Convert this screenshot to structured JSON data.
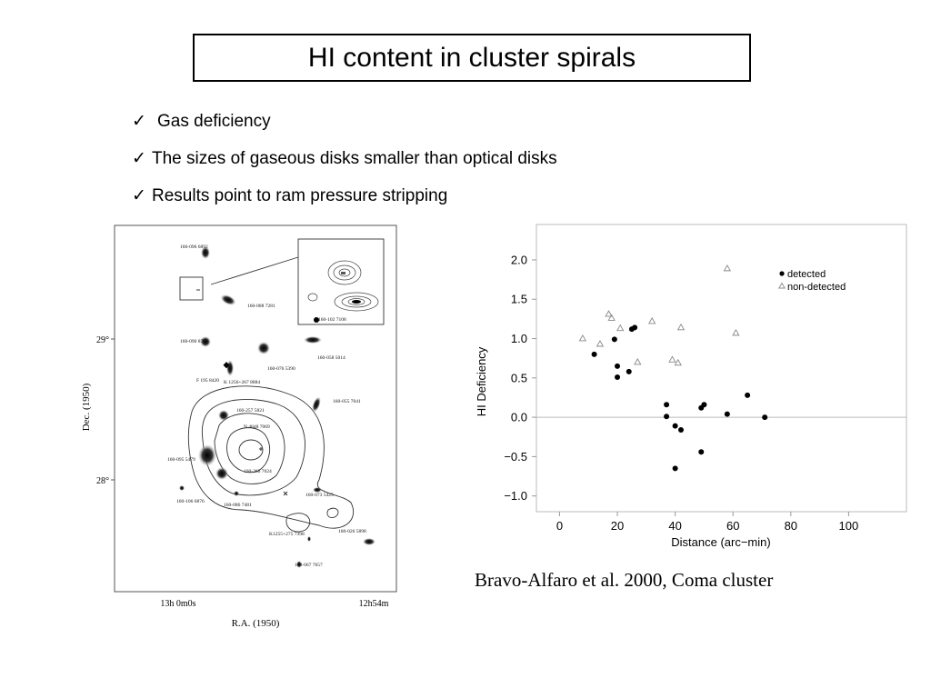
{
  "slide": {
    "title": "HI content in cluster spirals",
    "bullets": [
      "Gas deficiency",
      "The sizes of gaseous disks smaller than optical disks",
      "Results point to ram pressure stripping"
    ],
    "citation": "Bravo-Alfaro et al. 2000, Coma cluster",
    "check_symbol": "✓"
  },
  "map": {
    "dec_label": "Dec. (1950)",
    "ra_label": "R.A. (1950)",
    "dec_ticks": [
      "29°",
      "28°"
    ],
    "ra_tick_left": "13h 0m0s",
    "ra_tick_right": "12h54m",
    "galaxy_labels": [
      "160-096 6892",
      "160-088 7281",
      "160-090 8764",
      "160-058 5014",
      "160-076 5390",
      "F 195 8420",
      "K 1256+267 8884",
      "160-055 7041",
      "160-257 5821",
      "N 4848 7069",
      "160-095 5479",
      "160-260 7024",
      "160-106 6876",
      "160-086 7481",
      "160-073 5425",
      "K1255+275 7398",
      "160-026 5898",
      "160-067 7657",
      "160-102 7108"
    ]
  },
  "chart_data": {
    "type": "scatter",
    "xlabel": "Distance (arc−min)",
    "ylabel": "HI Deficiency",
    "xlim": [
      -8,
      120
    ],
    "ylim": [
      -1.2,
      2.45
    ],
    "xticks": [
      0,
      20,
      40,
      60,
      80,
      100
    ],
    "yticks": [
      2.0,
      1.5,
      1.0,
      0.5,
      0.0,
      -0.5,
      -1.0
    ],
    "hline": 0,
    "legend_position": "top-right",
    "series": [
      {
        "name": "detected",
        "marker": "filled-circle",
        "color": "#000000",
        "points": [
          [
            12,
            0.8
          ],
          [
            19,
            0.99
          ],
          [
            20,
            0.65
          ],
          [
            20,
            0.51
          ],
          [
            24,
            0.58
          ],
          [
            25,
            1.12
          ],
          [
            26,
            1.14
          ],
          [
            37,
            0.16
          ],
          [
            37,
            0.01
          ],
          [
            40,
            -0.11
          ],
          [
            42,
            -0.16
          ],
          [
            40,
            -0.65
          ],
          [
            49,
            0.12
          ],
          [
            50,
            0.16
          ],
          [
            49,
            -0.44
          ],
          [
            58,
            0.04
          ],
          [
            65,
            0.28
          ],
          [
            71,
            0.0
          ]
        ]
      },
      {
        "name": "non-detected",
        "marker": "open-triangle",
        "color": "#888888",
        "points": [
          [
            8,
            1.0
          ],
          [
            14,
            0.93
          ],
          [
            17,
            1.31
          ],
          [
            18,
            1.26
          ],
          [
            21,
            1.13
          ],
          [
            27,
            0.7
          ],
          [
            32,
            1.22
          ],
          [
            39,
            0.73
          ],
          [
            41,
            0.69
          ],
          [
            42,
            1.14
          ],
          [
            58,
            1.89
          ],
          [
            61,
            1.07
          ]
        ]
      }
    ]
  }
}
